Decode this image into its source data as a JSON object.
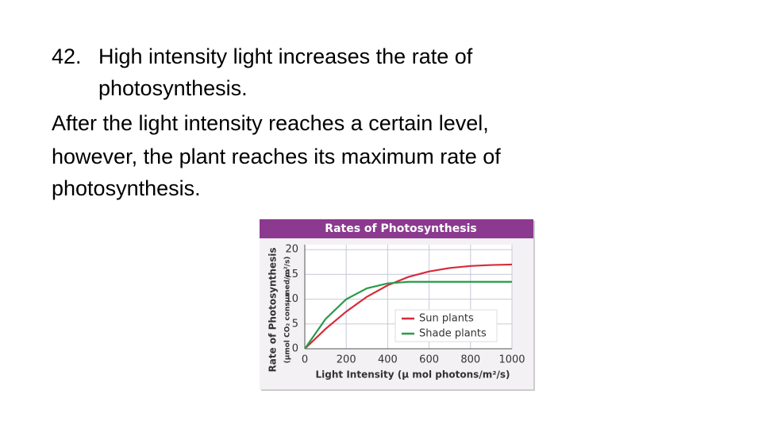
{
  "slide": {
    "lines": [
      "42.",
      "High intensity light increases the rate of",
      "photosynthesis.",
      "After the light intensity reaches a certain level,",
      "however, the plant reaches its maximum rate of",
      "photosynthesis."
    ]
  },
  "chart_data": {
    "type": "line",
    "title": "Rates of Photosynthesis",
    "y_label": "Rate of Photosynthesis",
    "y_sublabel": "(µmol CO₂ consumed/m²/s)",
    "x_label": "Light Intensity (µ mol photons/m²/s)",
    "x": [
      0,
      100,
      200,
      300,
      400,
      500,
      600,
      700,
      800,
      900,
      1000
    ],
    "series": [
      {
        "name": "Sun plants",
        "color": "#d62b3a",
        "values": [
          0,
          4,
          7.5,
          10.5,
          12.8,
          14.5,
          15.6,
          16.3,
          16.7,
          16.9,
          17
        ]
      },
      {
        "name": "Shade plants",
        "color": "#2a9a4a",
        "values": [
          0,
          6,
          10,
          12.2,
          13.2,
          13.5,
          13.5,
          13.5,
          13.5,
          13.5,
          13.5
        ]
      }
    ],
    "xlim": [
      0,
      1000
    ],
    "xticks": [
      0,
      200,
      400,
      600,
      800,
      1000
    ],
    "ylim": [
      0,
      21
    ],
    "yticks": [
      0,
      5,
      10,
      15,
      20
    ],
    "grid": true,
    "legend": "lower right"
  }
}
